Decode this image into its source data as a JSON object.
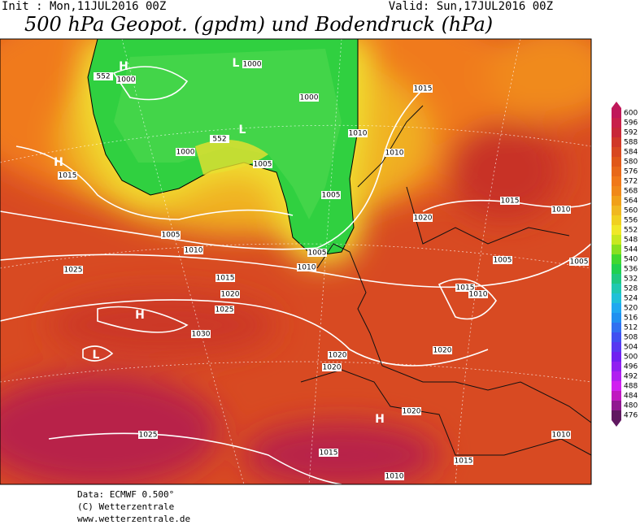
{
  "header": {
    "init": "Init : Mon,11JUL2016 00Z",
    "valid": "Valid: Sun,17JUL2016 00Z",
    "title": "500 hPa Geopot. (gpdm) und Bodendruck (hPa)"
  },
  "colorbar": {
    "levels": [
      600,
      596,
      592,
      588,
      584,
      580,
      576,
      572,
      568,
      564,
      560,
      556,
      552,
      548,
      544,
      540,
      536,
      532,
      528,
      524,
      520,
      516,
      512,
      508,
      504,
      500,
      496,
      492,
      488,
      484,
      480,
      476
    ],
    "colors": [
      "#c0185a",
      "#c8204a",
      "#c82838",
      "#d03828",
      "#d84820",
      "#e05818",
      "#e86818",
      "#f07818",
      "#f08818",
      "#f0a018",
      "#f0b820",
      "#f0d020",
      "#f0e828",
      "#c8e820",
      "#88e020",
      "#40d830",
      "#20d050",
      "#20c880",
      "#20c8b0",
      "#20c0d8",
      "#20a8f0",
      "#2090f0",
      "#3070f0",
      "#4050f0",
      "#5838f0",
      "#7020f0",
      "#9020f0",
      "#b020f0",
      "#d020f0",
      "#c018c0",
      "#901890",
      "#601860"
    ]
  },
  "map": {
    "labels": [
      "H",
      "1000",
      "552",
      "L",
      "1000",
      "1000",
      "1015",
      "L",
      "552",
      "1010",
      "1010",
      "1000",
      "1005",
      "H",
      "1015",
      "1005",
      "1020",
      "1015",
      "1010",
      "1005",
      "1010",
      "1005",
      "1010",
      "1005",
      "1005",
      "1025",
      "1015",
      "1015",
      "1010",
      "1020",
      "1025",
      "H",
      "1030",
      "L",
      "1020",
      "1020",
      "1020",
      "1020",
      "H",
      "1025",
      "1010",
      "1015",
      "1015",
      "1010"
    ]
  },
  "footer": {
    "data": "Data: ECMWF  0.500°",
    "copyright": "(C) Wetterzentrale",
    "url": "www.wetterzentrale.de"
  }
}
